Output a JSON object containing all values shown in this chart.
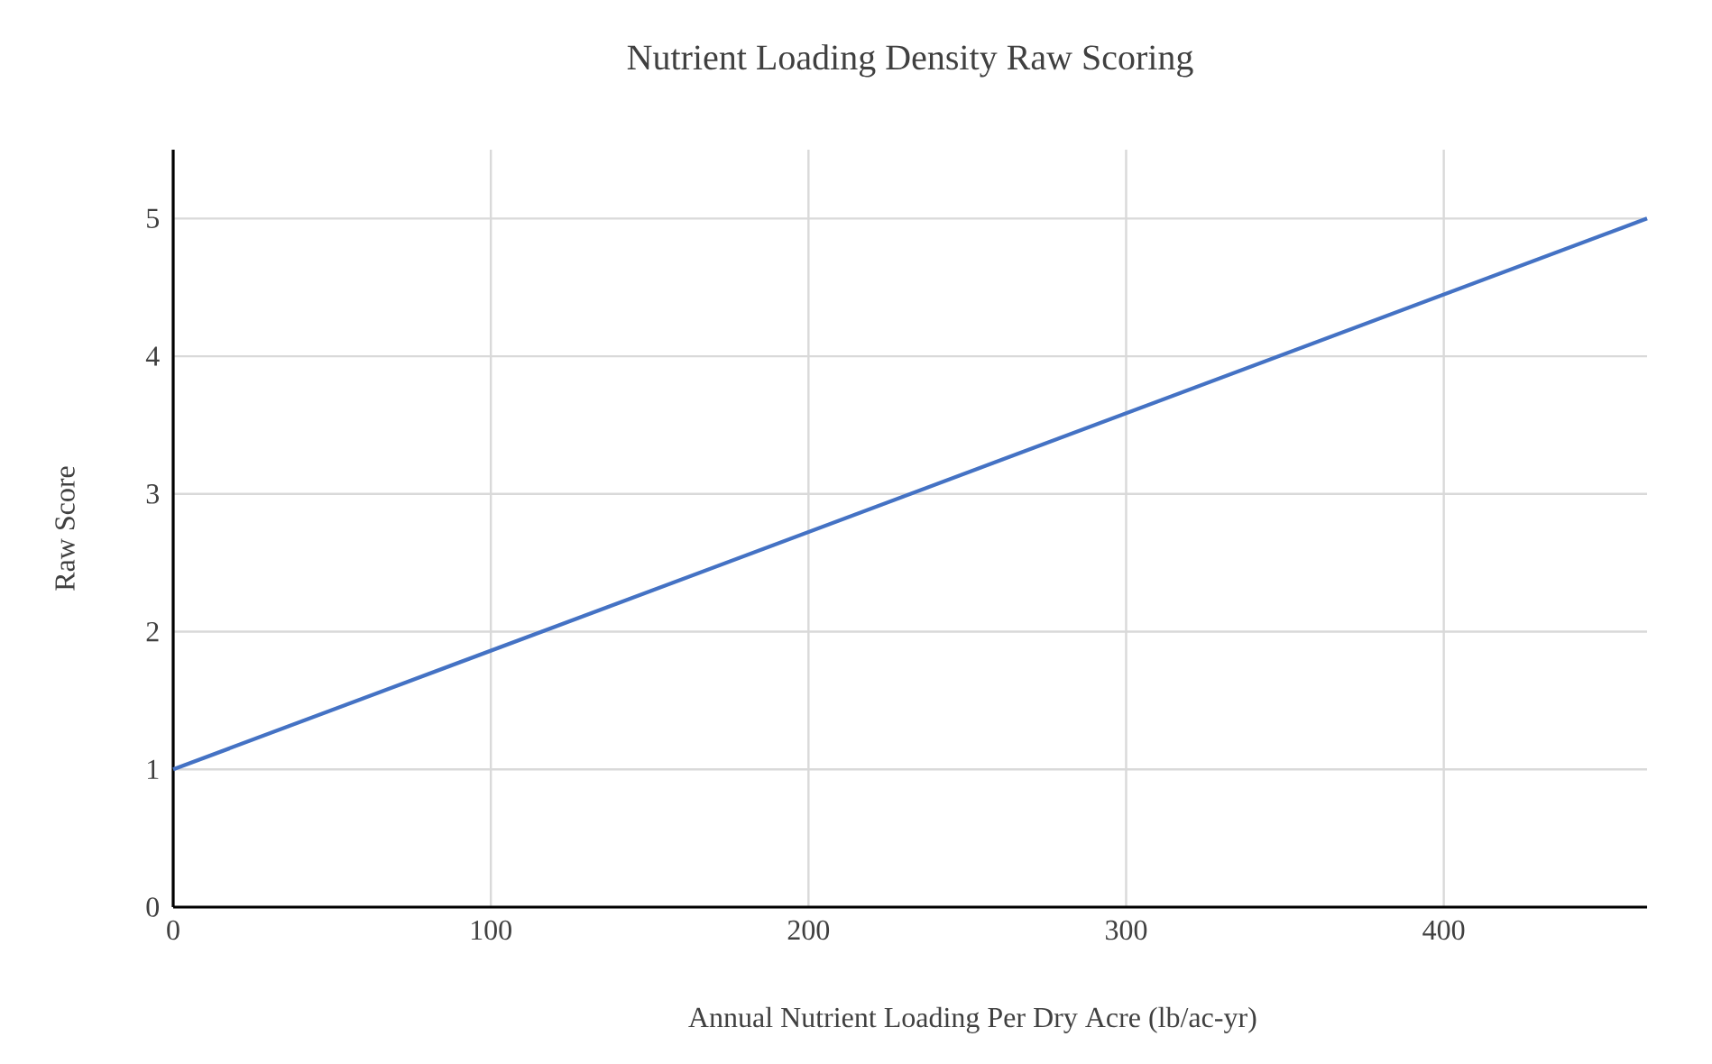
{
  "chart_data": {
    "type": "line",
    "title": "Nutrient Loading Density Raw Scoring",
    "xlabel": "Annual Nutrient Loading Per Dry Acre (lb/ac-yr)",
    "ylabel": "Raw Score",
    "x": [
      0,
      464
    ],
    "series": [
      {
        "color": "#4472c4",
        "values": [
          1,
          5
        ]
      }
    ],
    "xlim": [
      0,
      464
    ],
    "ylim": [
      0,
      5.5
    ],
    "xticks": [
      0,
      100,
      200,
      300,
      400
    ],
    "yticks": [
      0,
      1,
      2,
      3,
      4,
      5
    ],
    "grid": true,
    "marker": "none",
    "line_style": "solid"
  }
}
